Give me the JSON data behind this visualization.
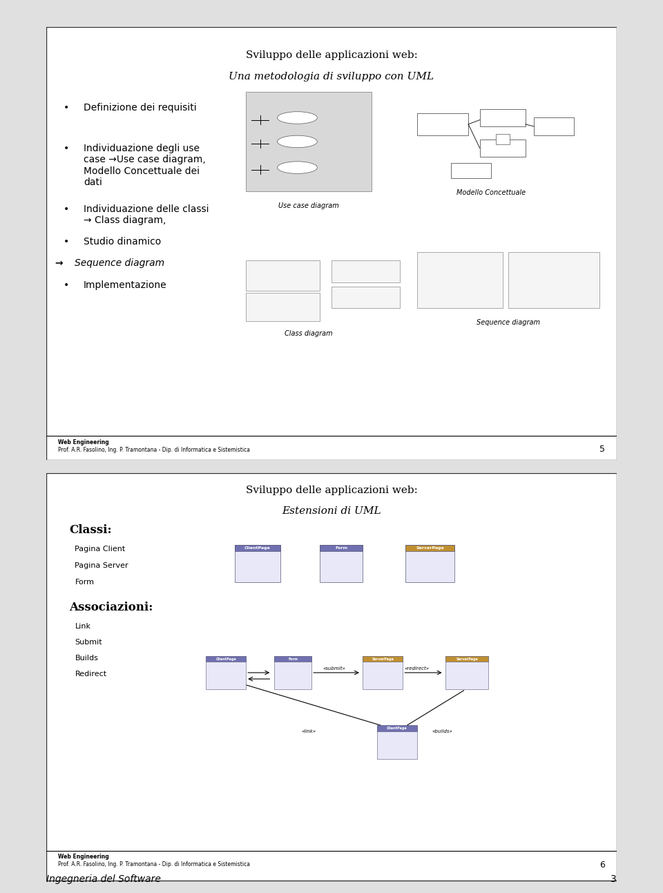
{
  "bg_color": "#ffffff",
  "slide1": {
    "title_line1": "Sviluppo delle applicazioni web:",
    "title_line2": "Una metodologia di sviluppo con UML",
    "bullets": [
      {
        "symbol": "•",
        "text": "Definizione dei requisiti",
        "bold": false,
        "arrow": false
      },
      {
        "symbol": "•",
        "text": "Individuazione degli use\ncase →Use case diagram,\nModello Concettuale dei\ndati",
        "bold": false,
        "arrow": false
      },
      {
        "symbol": "•",
        "text": "Individuazione delle classi\n→ Class diagram,",
        "bold": false,
        "arrow": false
      },
      {
        "symbol": "•",
        "text": "Studio dinamico",
        "bold": false,
        "arrow": false
      },
      {
        "symbol": "→",
        "text": "Sequence diagram",
        "bold": false,
        "arrow": true
      },
      {
        "symbol": "•",
        "text": "Implementazione",
        "bold": false,
        "arrow": false
      }
    ],
    "footer_line1": "Web Engineering",
    "footer_line2": "Prof. A.R. Fasolino, Ing. P. Tramontana - Dip. di Informatica e Sistemistica",
    "page_num": "5",
    "caption_use_case": "Use case diagram",
    "caption_modello": "Modello Concettuale",
    "caption_class": "Class diagram",
    "caption_sequence": "Sequence diagram"
  },
  "slide2": {
    "title_line1": "Sviluppo delle applicazioni web:",
    "title_line2": "Estensioni di UML",
    "classi_label": "Classi:",
    "classi_items": [
      "Pagina Client",
      "Pagina Server",
      "Form"
    ],
    "assoc_label": "Associazioni:",
    "assoc_items": [
      "Link",
      "Submit",
      "Builds",
      "Redirect"
    ],
    "footer_line1": "Web Engineering",
    "footer_line2": "Prof. A.R. Fasolino, Ing. P. Tramontana - Dip. di Informatica e Sistemistica",
    "page_num": "6"
  },
  "bottom_text": "Ingegneria del Software",
  "bottom_page": "3"
}
